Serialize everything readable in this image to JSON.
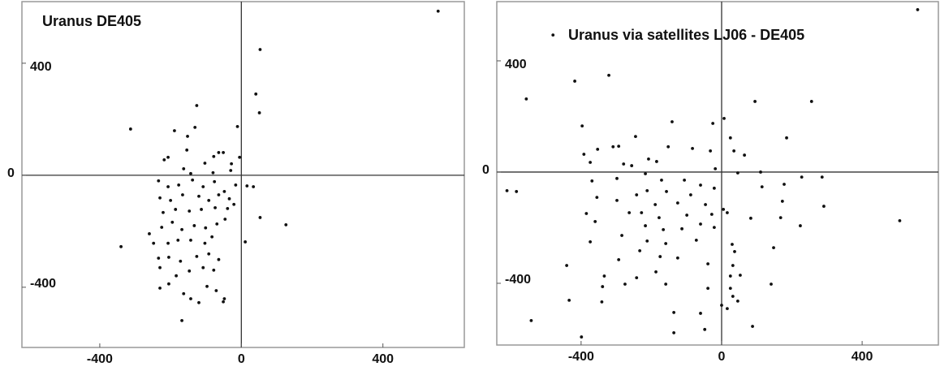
{
  "chart_data": [
    {
      "type": "scatter",
      "title": "Uranus DE405",
      "xlim": [
        -620,
        630
      ],
      "ylim": [
        -615,
        620
      ],
      "xticks": [
        -400,
        0,
        400
      ],
      "yticks": [
        400,
        0,
        -400
      ],
      "series": [
        {
          "color": "#111111",
          "x": [
            556,
            53,
            41,
            51,
            -11,
            -126,
            -313,
            -189,
            -152,
            -131,
            -207,
            -218,
            -154,
            -51,
            -64,
            -78,
            -28,
            -5,
            -103,
            -163,
            -143,
            -80,
            -30,
            -234,
            -207,
            -177,
            -138,
            -108,
            -76,
            -48,
            -16,
            16,
            34,
            -230,
            -200,
            -166,
            -120,
            -92,
            -64,
            -34,
            -221,
            -186,
            -147,
            -113,
            -74,
            -39,
            -21,
            -260,
            -225,
            -195,
            -168,
            -133,
            -101,
            -69,
            -46,
            -248,
            -207,
            -179,
            -143,
            -103,
            -83,
            11,
            53,
            126,
            -340,
            -234,
            -205,
            -172,
            -126,
            -92,
            -64,
            -230,
            -184,
            -147,
            -108,
            -78,
            -230,
            -205,
            -163,
            -97,
            -71,
            -143,
            -120,
            -48,
            -51,
            -168
          ],
          "values": [
            586,
            449,
            290,
            223,
            174,
            249,
            165,
            159,
            139,
            171,
            64,
            55,
            90,
            81,
            81,
            67,
            41,
            64,
            43,
            23,
            6,
            9,
            17,
            -20,
            -41,
            -35,
            -17,
            -41,
            -23,
            -58,
            -35,
            -38,
            -41,
            -81,
            -90,
            -70,
            -75,
            -90,
            -70,
            -84,
            -133,
            -122,
            -128,
            -122,
            -116,
            -119,
            -104,
            -209,
            -186,
            -168,
            -194,
            -180,
            -188,
            -174,
            -157,
            -243,
            -243,
            -232,
            -232,
            -243,
            -220,
            -238,
            -151,
            -177,
            -255,
            -296,
            -293,
            -307,
            -290,
            -281,
            -301,
            -330,
            -359,
            -342,
            -330,
            -339,
            -403,
            -388,
            -423,
            -397,
            -412,
            -441,
            -455,
            -441,
            -452,
            -519
          ]
        }
      ]
    },
    {
      "type": "scatter",
      "title": "Uranus via satellites LJ06 - DE405",
      "xlim": [
        -640,
        617
      ],
      "ylim": [
        -622,
        613
      ],
      "xticks": [
        -400,
        0,
        400
      ],
      "yticks": [
        400,
        0,
        -400
      ],
      "series": [
        {
          "color": "#111111",
          "x": [
            558,
            -480,
            -418,
            -321,
            -556,
            95,
            256,
            -397,
            7,
            -25,
            -141,
            185,
            25,
            -245,
            -309,
            -353,
            -293,
            -152,
            -83,
            -32,
            35,
            65,
            -208,
            -392,
            -374,
            -185,
            -256,
            -279,
            -18,
            46,
            111,
            228,
            286,
            -611,
            -584,
            -369,
            -298,
            -217,
            -171,
            -106,
            -60,
            178,
            115,
            -21,
            -212,
            -242,
            -157,
            -88,
            -355,
            -298,
            -189,
            -125,
            -46,
            5,
            173,
            291,
            168,
            -385,
            -360,
            -263,
            -228,
            -178,
            -99,
            -28,
            16,
            83,
            507,
            224,
            -217,
            -166,
            -113,
            -60,
            -21,
            -374,
            -284,
            -212,
            -159,
            -72,
            -233,
            -175,
            -125,
            30,
            37,
            148,
            -293,
            -441,
            -39,
            32,
            -334,
            -242,
            -187,
            25,
            53,
            -339,
            -275,
            -159,
            -39,
            25,
            141,
            32,
            -434,
            0,
            16,
            -341,
            -136,
            -60,
            46,
            -542,
            -399,
            -136,
            -48,
            88
          ],
          "values": [
            584,
            493,
            327,
            348,
            263,
            254,
            254,
            166,
            193,
            175,
            181,
            123,
            123,
            128,
            91,
            82,
            93,
            91,
            85,
            76,
            76,
            61,
            47,
            64,
            35,
            38,
            23,
            29,
            12,
            -3,
            0,
            -18,
            -18,
            -67,
            -70,
            -32,
            -23,
            -6,
            -29,
            -29,
            -47,
            -44,
            -53,
            -58,
            -67,
            -82,
            -70,
            -82,
            -91,
            -102,
            -117,
            -111,
            -117,
            -134,
            -105,
            -123,
            -164,
            -149,
            -178,
            -146,
            -146,
            -164,
            -155,
            -152,
            -146,
            -166,
            -175,
            -193,
            -193,
            -207,
            -204,
            -187,
            -199,
            -251,
            -228,
            -248,
            -257,
            -245,
            -283,
            -304,
            -309,
            -260,
            -286,
            -272,
            -315,
            -336,
            -330,
            -336,
            -374,
            -380,
            -359,
            -374,
            -371,
            -412,
            -403,
            -403,
            -418,
            -418,
            -403,
            -447,
            -461,
            -479,
            -491,
            -467,
            -505,
            -508,
            -464,
            -534,
            -593,
            -578,
            -566,
            -555
          ]
        }
      ]
    }
  ]
}
